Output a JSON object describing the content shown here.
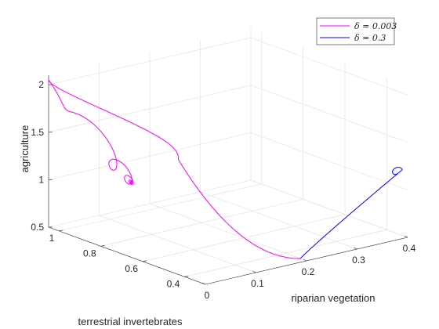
{
  "chart_data": {
    "type": "line",
    "dimensions": 3,
    "title": "",
    "xlabel": "terrestrial invertebrates",
    "ylabel": "riparian vegetation",
    "zlabel": "agriculture",
    "xlim": [
      0.3,
      1.05
    ],
    "ylim": [
      0,
      0.4
    ],
    "zlim": [
      0.5,
      2.1
    ],
    "x_ticks": [
      "0.4",
      "0.6",
      "0.8",
      "1"
    ],
    "y_ticks": [
      "0",
      "0.1",
      "0.2",
      "0.3",
      "0.4"
    ],
    "z_ticks": [
      "0.5",
      "1",
      "1.5",
      "2"
    ],
    "grid": true,
    "box": false,
    "legend_position": "top-right",
    "series": [
      {
        "name": "δ = 0.003",
        "color": "#ff00ff",
        "start": [
          0.33,
          0.2,
          0.5
        ],
        "peak": [
          1.05,
          0.0,
          2.05
        ],
        "equilibrium": [
          0.8,
          0.06,
          1.1
        ]
      },
      {
        "name": "δ = 0.3",
        "color": "#0000ff",
        "start": [
          0.33,
          0.2,
          0.5
        ],
        "equilibrium": [
          0.33,
          0.39,
          1.18
        ]
      }
    ]
  }
}
